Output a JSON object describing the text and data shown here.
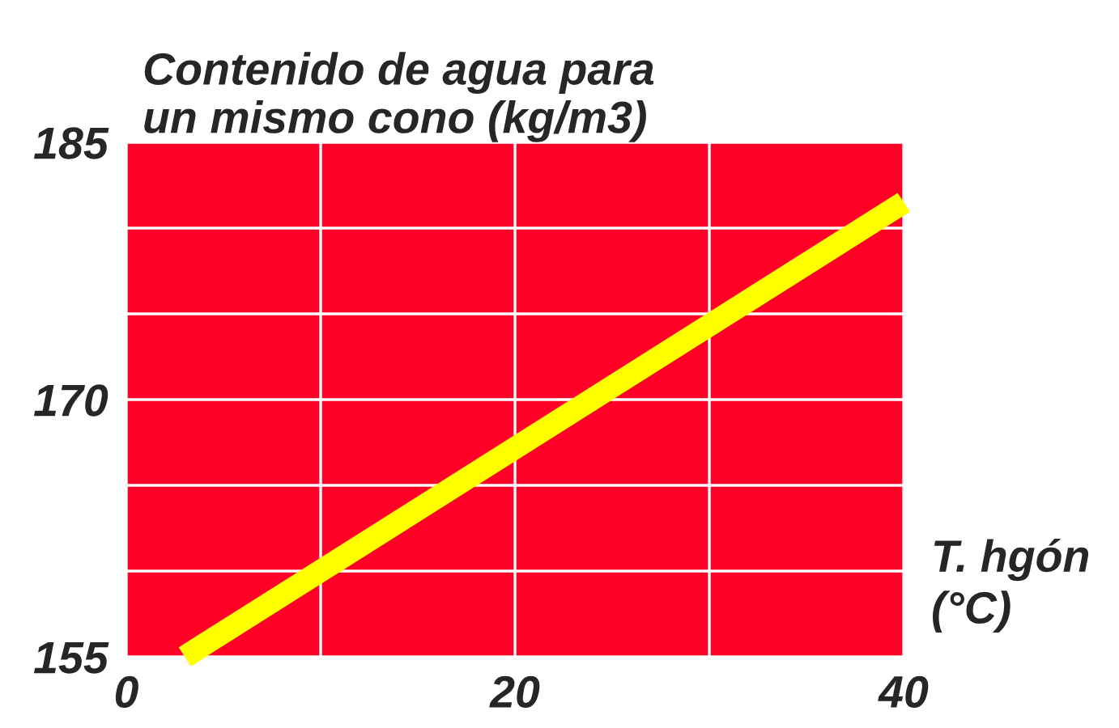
{
  "chart_data": {
    "type": "line",
    "ylabel": "Contenido de agua para\nun mismo cono (kg/m3)",
    "xlabel": "T. hgón\n(°C)",
    "x": [
      3,
      40
    ],
    "series": [
      {
        "color": "#ffff00",
        "values": [
          155,
          181.5
        ]
      }
    ],
    "xlim": [
      0,
      40
    ],
    "xticks": [
      0,
      {
        "value": 10,
        "label": null
      },
      20,
      {
        "value": 30,
        "label": null
      },
      40
    ],
    "ylim": [
      155,
      185
    ],
    "yticks": [
      155,
      {
        "value": 160,
        "label": null
      },
      {
        "value": 165,
        "label": null
      },
      170,
      {
        "value": 175,
        "label": null
      },
      {
        "value": 180,
        "label": null
      },
      185
    ],
    "grid": true,
    "marker": "none",
    "line_style": "solid"
  }
}
